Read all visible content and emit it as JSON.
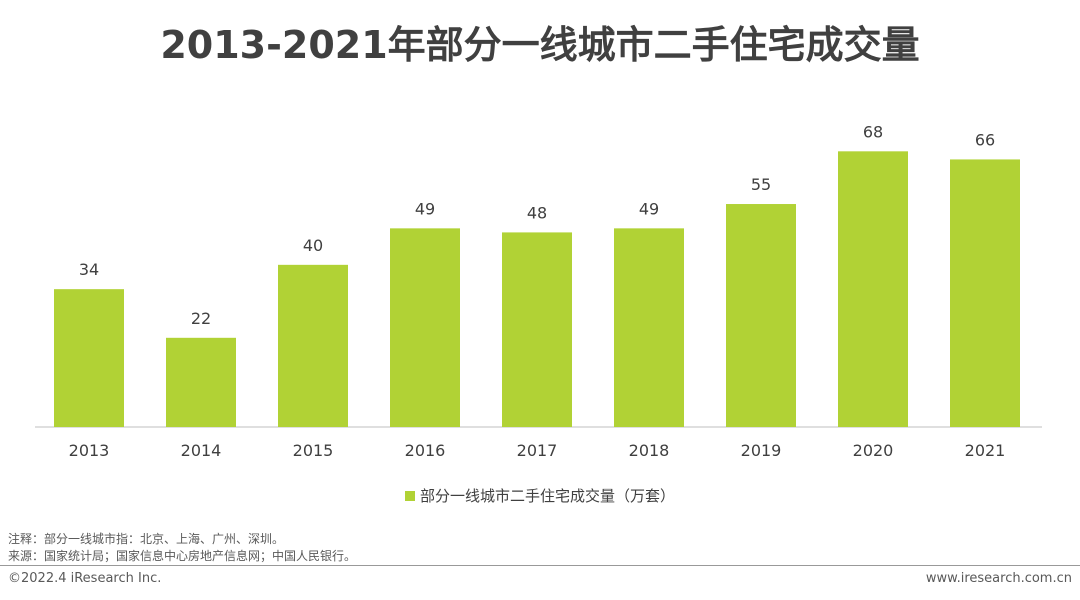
{
  "chart_data": {
    "type": "bar",
    "title": "2013-2021年部分一线城市二手住宅成交量",
    "categories": [
      "2013",
      "2014",
      "2015",
      "2016",
      "2017",
      "2018",
      "2019",
      "2020",
      "2021"
    ],
    "series": [
      {
        "name": "部分一线城市二手住宅成交量（万套）",
        "values": [
          34,
          22,
          40,
          49,
          48,
          49,
          55,
          68,
          66
        ],
        "color": "#b1d235"
      }
    ],
    "xlabel": "",
    "ylabel": "",
    "ylim": [
      0,
      74
    ],
    "grid": false,
    "legend": "bottom"
  },
  "notes": {
    "note": "注释：部分一线城市指：北京、上海、广州、深圳。",
    "source": "来源：国家统计局；国家信息中心房地产信息网；中国人民银行。"
  },
  "footer": {
    "copyright": "©2022.4 iResearch Inc.",
    "website": "www.iresearch.com.cn"
  }
}
